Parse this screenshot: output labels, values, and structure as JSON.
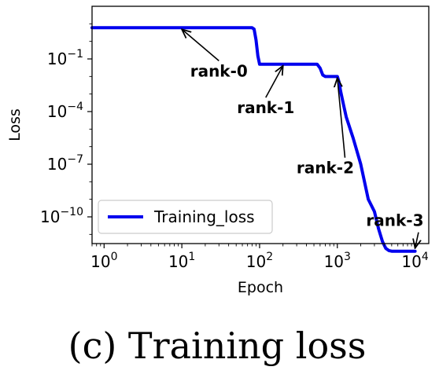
{
  "caption": "(c) Training loss",
  "chart_data": {
    "type": "line",
    "title": "",
    "xlabel": "Epoch",
    "ylabel": "Loss",
    "xscale": "log",
    "yscale": "log",
    "xlim": [
      0.7,
      15000
    ],
    "ylim": [
      3e-12,
      100.0
    ],
    "grid": false,
    "legend_placement": "lower-left",
    "x_ticks": [
      {
        "value": 1,
        "base": "10",
        "exp": "0"
      },
      {
        "value": 10,
        "base": "10",
        "exp": "1"
      },
      {
        "value": 100,
        "base": "10",
        "exp": "2"
      },
      {
        "value": 1000,
        "base": "10",
        "exp": "3"
      },
      {
        "value": 10000,
        "base": "10",
        "exp": "4"
      }
    ],
    "y_ticks": [
      {
        "value": 0.1,
        "base": "10",
        "exp": "−1"
      },
      {
        "value": 0.0001,
        "base": "10",
        "exp": "−4"
      },
      {
        "value": 1e-07,
        "base": "10",
        "exp": "−7"
      },
      {
        "value": 1e-10,
        "base": "10",
        "exp": "−10"
      }
    ],
    "series": [
      {
        "name": "Training_loss",
        "color": "#0000ee",
        "x": [
          0.7,
          70,
          80,
          85,
          90,
          95,
          100,
          300,
          550,
          600,
          650,
          700,
          1000,
          1050,
          1100,
          1200,
          1300,
          1600,
          2000,
          2500,
          3000,
          3400,
          3800,
          4200,
          4600,
          5000,
          6000,
          10000
        ],
        "y": [
          6,
          6,
          6,
          5,
          1.2,
          0.15,
          0.05,
          0.05,
          0.05,
          0.03,
          0.012,
          0.01,
          0.01,
          0.005,
          0.0015,
          0.00025,
          5e-05,
          3e-06,
          1e-07,
          1e-09,
          2e-10,
          2e-11,
          4e-12,
          1.6e-12,
          1.2e-12,
          1.1e-12,
          1.1e-12,
          1.1e-12
        ]
      }
    ],
    "annotations": [
      {
        "text": "rank-0",
        "xy": [
          10,
          6
        ],
        "xytext": [
          30,
          0.01
        ]
      },
      {
        "text": "rank-1",
        "xy": [
          200,
          0.05
        ],
        "xytext": [
          120,
          8e-05
        ]
      },
      {
        "text": "rank-2",
        "xy": [
          1000,
          0.01
        ],
        "xytext": [
          700,
          3e-08
        ]
      },
      {
        "text": "rank-3",
        "xy": [
          10000,
          1.1e-12
        ],
        "xytext": [
          5500,
          3e-11
        ]
      }
    ]
  }
}
